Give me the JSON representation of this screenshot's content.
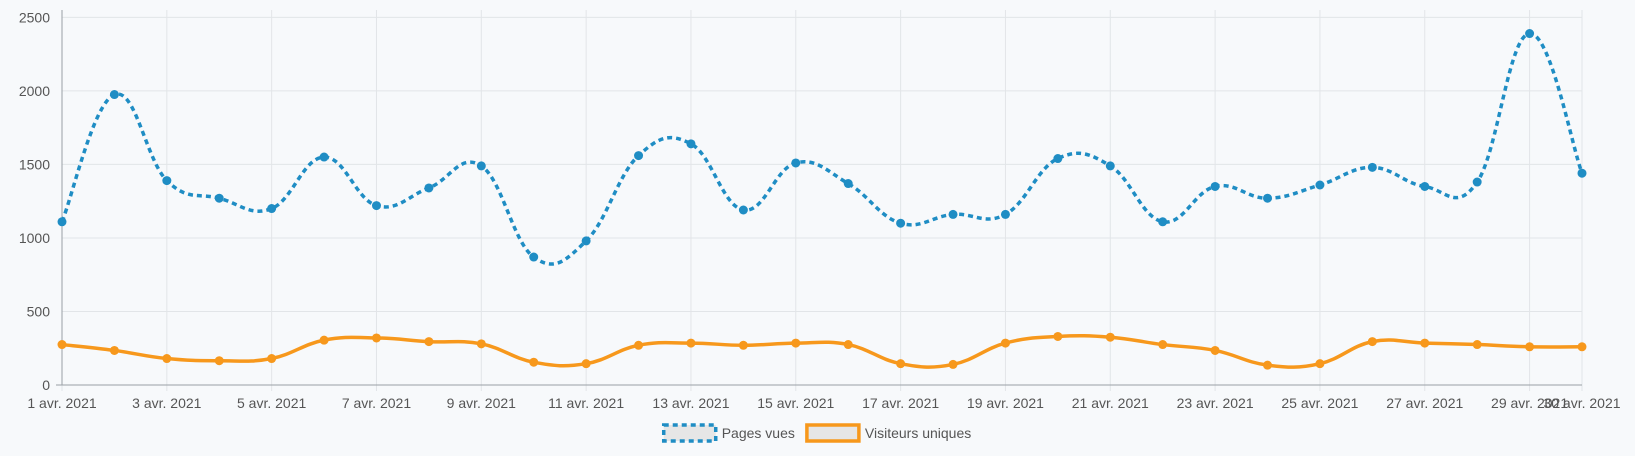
{
  "chart_data": {
    "type": "line",
    "x": [
      "1 avr. 2021",
      "2 avr. 2021",
      "3 avr. 2021",
      "4 avr. 2021",
      "5 avr. 2021",
      "6 avr. 2021",
      "7 avr. 2021",
      "8 avr. 2021",
      "9 avr. 2021",
      "10 avr. 2021",
      "11 avr. 2021",
      "12 avr. 2021",
      "13 avr. 2021",
      "14 avr. 2021",
      "15 avr. 2021",
      "16 avr. 2021",
      "17 avr. 2021",
      "18 avr. 2021",
      "19 avr. 2021",
      "20 avr. 2021",
      "21 avr. 2021",
      "22 avr. 2021",
      "23 avr. 2021",
      "24 avr. 2021",
      "25 avr. 2021",
      "26 avr. 2021",
      "27 avr. 2021",
      "28 avr. 2021",
      "29 avr. 2021",
      "30 avr. 2021"
    ],
    "x_tick_labels": [
      "1 avr. 2021",
      "3 avr. 2021",
      "5 avr. 2021",
      "7 avr. 2021",
      "9 avr. 2021",
      "11 avr. 2021",
      "13 avr. 2021",
      "15 avr. 2021",
      "17 avr. 2021",
      "19 avr. 2021",
      "21 avr. 2021",
      "23 avr. 2021",
      "25 avr. 2021",
      "27 avr. 2021",
      "29 avr. 2021",
      "30 avr. 2021"
    ],
    "y_ticks": [
      0,
      500,
      1000,
      1500,
      2000,
      2500
    ],
    "ylim": [
      0,
      2550
    ],
    "grid": true,
    "legend_position": "bottom",
    "series": [
      {
        "name": "Pages vues",
        "color": "#1f8dc4",
        "style": "dashed",
        "values": [
          1110,
          1975,
          1390,
          1270,
          1200,
          1550,
          1220,
          1340,
          1490,
          870,
          980,
          1560,
          1640,
          1190,
          1510,
          1370,
          1100,
          1160,
          1160,
          1540,
          1490,
          1110,
          1350,
          1270,
          1360,
          1480,
          1350,
          1380,
          2390,
          1440
        ]
      },
      {
        "name": "Visiteurs uniques",
        "color": "#f7981c",
        "style": "solid",
        "values": [
          275,
          235,
          180,
          165,
          180,
          305,
          320,
          295,
          280,
          155,
          145,
          270,
          285,
          270,
          285,
          275,
          145,
          140,
          285,
          330,
          325,
          275,
          235,
          135,
          145,
          295,
          285,
          275,
          260,
          260
        ]
      }
    ]
  }
}
